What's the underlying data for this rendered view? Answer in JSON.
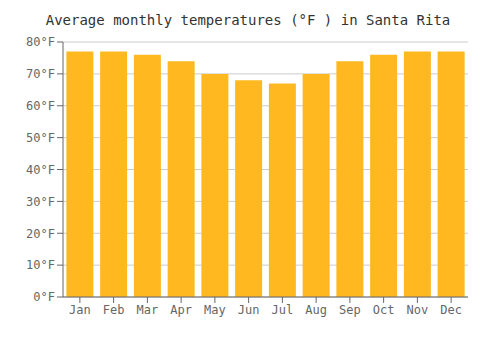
{
  "chart_data": {
    "type": "bar",
    "title": "Average monthly temperatures (°F ) in Santa Rita",
    "categories": [
      "Jan",
      "Feb",
      "Mar",
      "Apr",
      "May",
      "Jun",
      "Jul",
      "Aug",
      "Sep",
      "Oct",
      "Nov",
      "Dec"
    ],
    "values": [
      77,
      77,
      76,
      74,
      70,
      68,
      67,
      70,
      74,
      76,
      77,
      77
    ],
    "color": "#FFB820",
    "ylim": [
      0,
      80
    ],
    "yticks": [
      {
        "value": 0,
        "label": "0°F"
      },
      {
        "value": 10,
        "label": "10°F"
      },
      {
        "value": 20,
        "label": "20°F"
      },
      {
        "value": 30,
        "label": "30°F"
      },
      {
        "value": 40,
        "label": "40°F"
      },
      {
        "value": 50,
        "label": "50°F"
      },
      {
        "value": 60,
        "label": "60°F"
      },
      {
        "value": 70,
        "label": "70°F"
      },
      {
        "value": 80,
        "label": "80°F"
      }
    ],
    "grid": true
  }
}
